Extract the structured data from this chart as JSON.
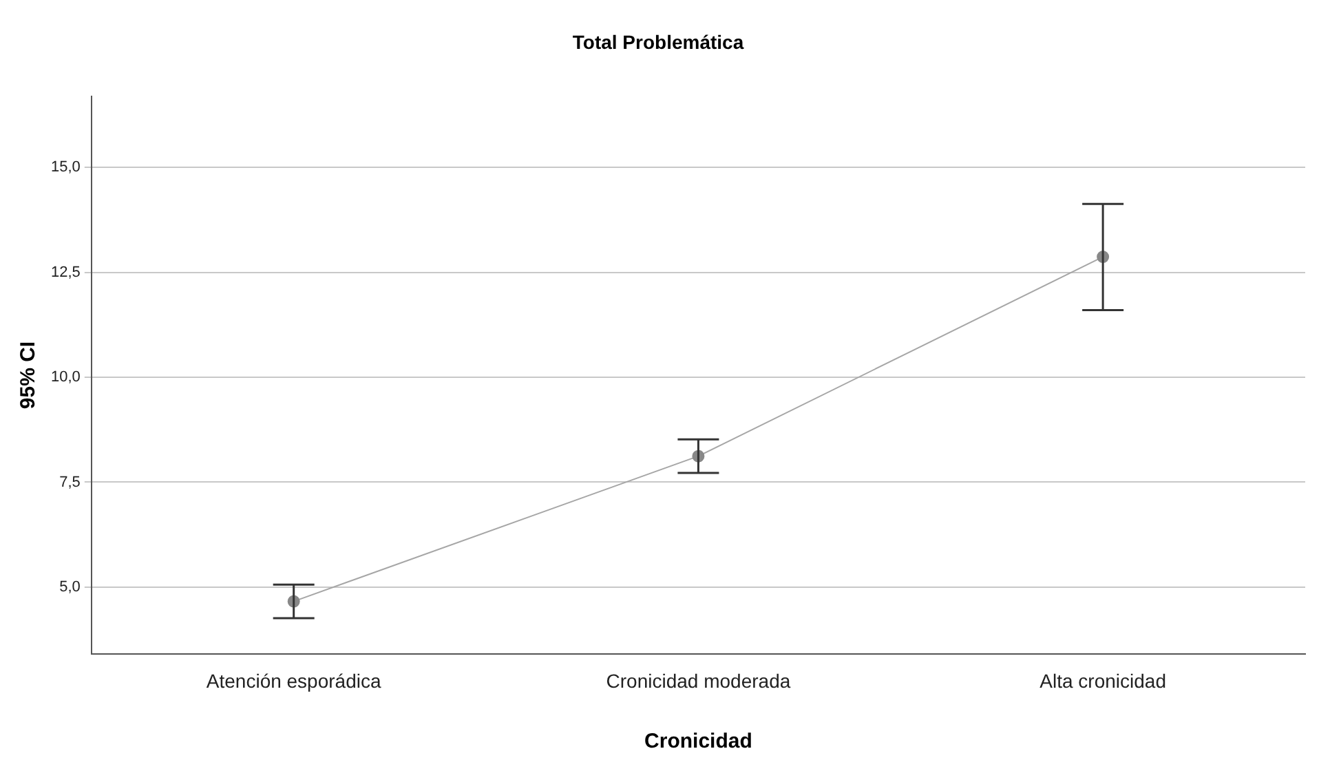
{
  "chart_data": {
    "type": "line",
    "title": "Total Problemática",
    "xlabel": "Cronicidad",
    "ylabel": "95% CI",
    "categories": [
      "Atención esporádica",
      "Cronicidad moderada",
      "Alta cronicidad"
    ],
    "series": [
      {
        "color": "#a6a6a6",
        "values": [
          4.66,
          8.12,
          12.87
        ],
        "errors": [
          [
            4.26,
            5.06
          ],
          [
            7.72,
            8.52
          ],
          [
            11.6,
            14.13
          ]
        ]
      }
    ],
    "ylim": [
      3.4,
      16.7
    ],
    "yticks": [
      {
        "value": 5,
        "label": "5,0"
      },
      {
        "value": 7.5,
        "label": "7,5"
      },
      {
        "value": 10,
        "label": "10,0"
      },
      {
        "value": 12.5,
        "label": "12,5"
      },
      {
        "value": 15,
        "label": "15,0"
      }
    ],
    "grid": "y",
    "legend": false,
    "marker": "circle",
    "line_style": "solid"
  }
}
